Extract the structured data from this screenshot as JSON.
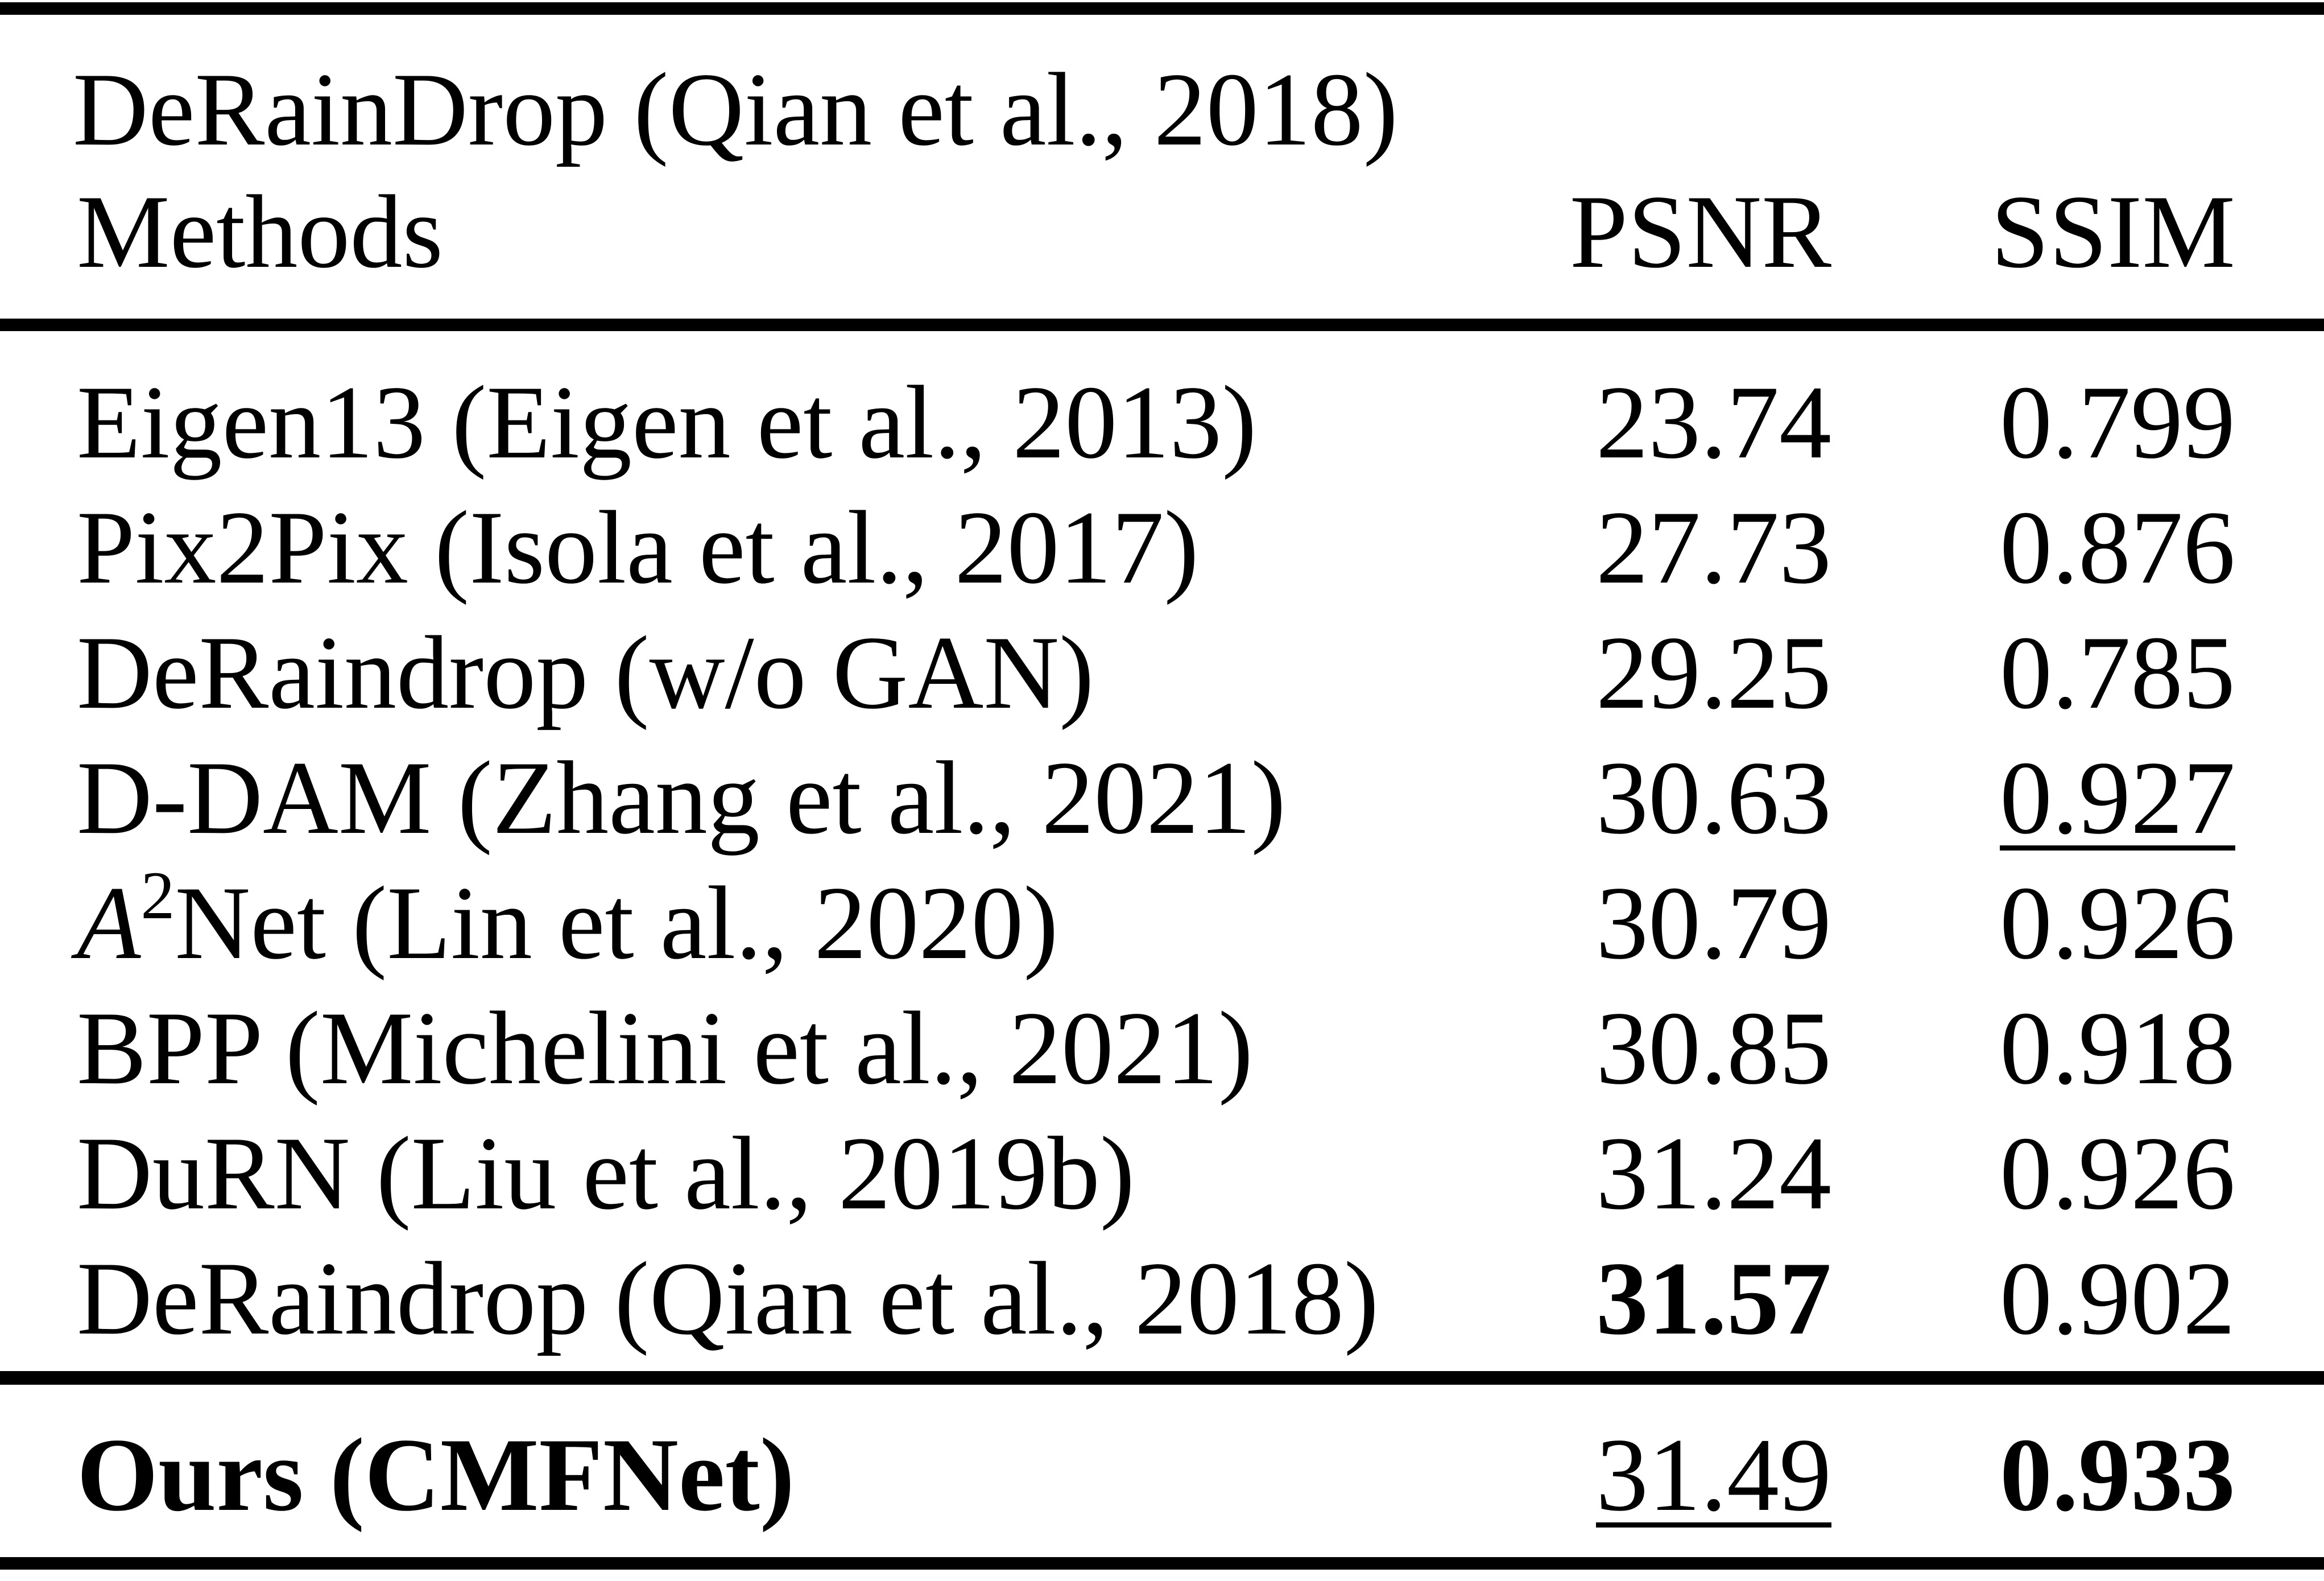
{
  "table": {
    "dataset_title": "DeRainDrop (Qian et al., 2018)",
    "headers": {
      "method": "Methods",
      "psnr": "PSNR",
      "ssim": "SSIM"
    },
    "rows": [
      {
        "method": "Eigen13 (Eigen et al., 2013)",
        "psnr": "23.74",
        "ssim": "0.799"
      },
      {
        "method": "Pix2Pix (Isola et al., 2017)",
        "psnr": "27.73",
        "ssim": "0.876"
      },
      {
        "method": "DeRaindrop (w/o GAN)",
        "psnr": "29.25",
        "ssim": "0.785"
      },
      {
        "method": "D-DAM (Zhang et al., 2021)",
        "psnr": "30.63",
        "ssim": "0.927"
      },
      {
        "method_italic": "A",
        "method_sup": "2",
        "method": "Net (Lin et al., 2020)",
        "psnr": "30.79",
        "ssim": "0.926"
      },
      {
        "method": "BPP (Michelini et al., 2021)",
        "psnr": "30.85",
        "ssim": "0.918"
      },
      {
        "method": "DuRN (Liu et al., 2019b)",
        "psnr": "31.24",
        "ssim": "0.926"
      },
      {
        "method": "DeRaindrop (Qian et al., 2018)",
        "psnr": "31.57",
        "ssim": "0.902"
      }
    ],
    "ours": {
      "method": "Ours (CMFNet)",
      "psnr": "31.49",
      "ssim": "0.933"
    }
  }
}
